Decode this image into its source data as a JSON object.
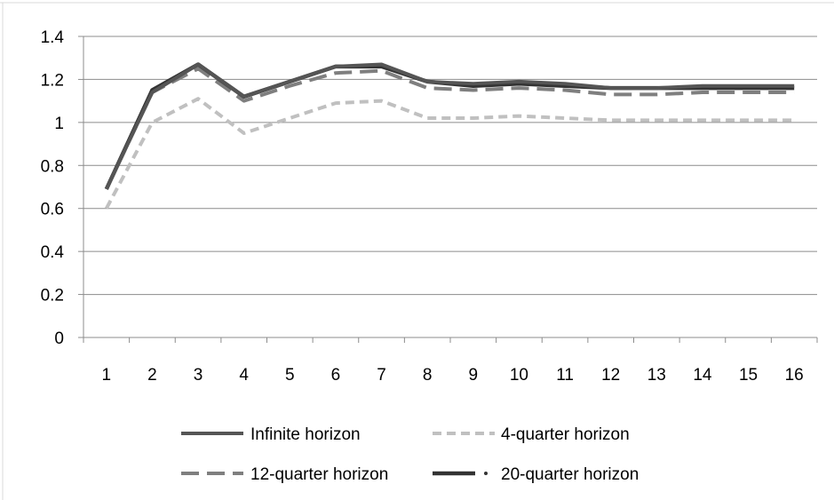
{
  "chart_data": {
    "type": "line",
    "x": [
      "1",
      "2",
      "3",
      "4",
      "5",
      "6",
      "7",
      "8",
      "9",
      "10",
      "11",
      "12",
      "13",
      "14",
      "15",
      "16"
    ],
    "ylim": [
      0,
      1.4
    ],
    "yticks": [
      "0",
      "0.2",
      "0.4",
      "0.6",
      "0.8",
      "1",
      "1.2",
      "1.4"
    ],
    "grid": true,
    "legend_position": "bottom",
    "series": [
      {
        "name": "Infinite horizon",
        "color": "#555555",
        "style": "solid",
        "values": [
          0.69,
          1.14,
          1.27,
          1.12,
          1.19,
          1.26,
          1.27,
          1.19,
          1.18,
          1.19,
          1.18,
          1.16,
          1.16,
          1.17,
          1.17,
          1.17
        ]
      },
      {
        "name": "4-quarter horizon",
        "color": "#c0c0c0",
        "style": "dashed",
        "values": [
          0.6,
          1.0,
          1.11,
          0.95,
          1.02,
          1.09,
          1.1,
          1.02,
          1.02,
          1.03,
          1.02,
          1.01,
          1.01,
          1.01,
          1.01,
          1.01
        ]
      },
      {
        "name": "12-quarter horizon",
        "color": "#7f7f7f",
        "style": "long-dashed",
        "values": [
          0.69,
          1.14,
          1.25,
          1.1,
          1.17,
          1.23,
          1.24,
          1.16,
          1.15,
          1.16,
          1.15,
          1.13,
          1.13,
          1.14,
          1.14,
          1.14
        ]
      },
      {
        "name": "20-quarter horizon",
        "color": "#333333",
        "style": "dash-dot",
        "values": [
          0.69,
          1.15,
          1.27,
          1.12,
          1.19,
          1.26,
          1.26,
          1.19,
          1.17,
          1.18,
          1.17,
          1.16,
          1.16,
          1.16,
          1.16,
          1.16
        ]
      }
    ]
  }
}
